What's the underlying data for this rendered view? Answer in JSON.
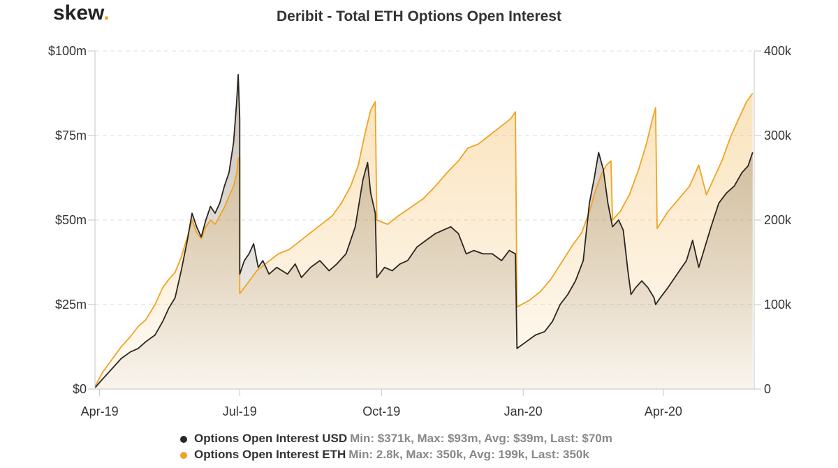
{
  "logo": {
    "text": "skew",
    "dot": "."
  },
  "colors": {
    "usd": "#2b2622",
    "eth": "#f0a323",
    "grid": "#dddddd",
    "axis": "#c6c6c6"
  },
  "chart_data": {
    "type": "area",
    "title": "Deribit - Total ETH Options Open Interest",
    "x_ticks": [
      "Apr-19",
      "Jul-19",
      "Oct-19",
      "Jan-20",
      "Apr-20"
    ],
    "x_range": [
      "2019-03-29",
      "2020-05-30"
    ],
    "y_left": {
      "ticks": [
        "$0",
        "$25m",
        "$50m",
        "$75m",
        "$100m"
      ],
      "range": [
        0,
        100
      ],
      "unit": "USD millions"
    },
    "y_right": {
      "ticks": [
        "0",
        "100k",
        "200k",
        "300k",
        "400k"
      ],
      "range": [
        0,
        400
      ],
      "unit": "ETH thousands"
    },
    "grid": true,
    "legend_position": "bottom",
    "series": [
      {
        "name": "Options Open Interest USD",
        "stats": "Min: $371k, Max: $93m, Avg: $39m, Last: $70m",
        "axis": "left",
        "points": [
          [
            "2019-03-29",
            0.4
          ],
          [
            "2019-04-03",
            3
          ],
          [
            "2019-04-09",
            6
          ],
          [
            "2019-04-15",
            9
          ],
          [
            "2019-04-21",
            11
          ],
          [
            "2019-04-26",
            12
          ],
          [
            "2019-05-01",
            14
          ],
          [
            "2019-05-07",
            16
          ],
          [
            "2019-05-12",
            20
          ],
          [
            "2019-05-16",
            24
          ],
          [
            "2019-05-20",
            27
          ],
          [
            "2019-05-24",
            35
          ],
          [
            "2019-05-28",
            44
          ],
          [
            "2019-05-31",
            52
          ],
          [
            "2019-06-03",
            48
          ],
          [
            "2019-06-06",
            45
          ],
          [
            "2019-06-09",
            50
          ],
          [
            "2019-06-12",
            54
          ],
          [
            "2019-06-15",
            52
          ],
          [
            "2019-06-18",
            55
          ],
          [
            "2019-06-21",
            60
          ],
          [
            "2019-06-24",
            64
          ],
          [
            "2019-06-27",
            73
          ],
          [
            "2019-06-29",
            85
          ],
          [
            "2019-06-30",
            93
          ],
          [
            "2019-07-01",
            80
          ],
          [
            "2019-07-01",
            34
          ],
          [
            "2019-07-04",
            38
          ],
          [
            "2019-07-07",
            40
          ],
          [
            "2019-07-10",
            43
          ],
          [
            "2019-07-13",
            36
          ],
          [
            "2019-07-16",
            38
          ],
          [
            "2019-07-20",
            34
          ],
          [
            "2019-07-25",
            36
          ],
          [
            "2019-08-01",
            34
          ],
          [
            "2019-08-06",
            37
          ],
          [
            "2019-08-10",
            33
          ],
          [
            "2019-08-16",
            36
          ],
          [
            "2019-08-22",
            38
          ],
          [
            "2019-08-28",
            35
          ],
          [
            "2019-09-02",
            37
          ],
          [
            "2019-09-08",
            40
          ],
          [
            "2019-09-14",
            48
          ],
          [
            "2019-09-19",
            62
          ],
          [
            "2019-09-22",
            67
          ],
          [
            "2019-09-24",
            58
          ],
          [
            "2019-09-27",
            52
          ],
          [
            "2019-09-28",
            33
          ],
          [
            "2019-10-03",
            36
          ],
          [
            "2019-10-08",
            35
          ],
          [
            "2019-10-13",
            37
          ],
          [
            "2019-10-18",
            38
          ],
          [
            "2019-10-24",
            42
          ],
          [
            "2019-10-30",
            44
          ],
          [
            "2019-11-05",
            46
          ],
          [
            "2019-11-10",
            47
          ],
          [
            "2019-11-15",
            48
          ],
          [
            "2019-11-20",
            46
          ],
          [
            "2019-11-25",
            40
          ],
          [
            "2019-11-30",
            41
          ],
          [
            "2019-12-06",
            40
          ],
          [
            "2019-12-12",
            40
          ],
          [
            "2019-12-18",
            38
          ],
          [
            "2019-12-23",
            41
          ],
          [
            "2019-12-27",
            40
          ],
          [
            "2019-12-28",
            12
          ],
          [
            "2020-01-03",
            14
          ],
          [
            "2020-01-09",
            16
          ],
          [
            "2020-01-15",
            17
          ],
          [
            "2020-01-20",
            20
          ],
          [
            "2020-01-25",
            25
          ],
          [
            "2020-01-30",
            28
          ],
          [
            "2020-02-04",
            32
          ],
          [
            "2020-02-09",
            38
          ],
          [
            "2020-02-13",
            55
          ],
          [
            "2020-02-16",
            62
          ],
          [
            "2020-02-19",
            70
          ],
          [
            "2020-02-22",
            65
          ],
          [
            "2020-02-25",
            55
          ],
          [
            "2020-02-28",
            48
          ],
          [
            "2020-03-03",
            50
          ],
          [
            "2020-03-06",
            47
          ],
          [
            "2020-03-09",
            35
          ],
          [
            "2020-03-11",
            28
          ],
          [
            "2020-03-14",
            30
          ],
          [
            "2020-03-18",
            32
          ],
          [
            "2020-03-22",
            30
          ],
          [
            "2020-03-26",
            27
          ],
          [
            "2020-03-27",
            25
          ],
          [
            "2020-03-30",
            27
          ],
          [
            "2020-04-04",
            30
          ],
          [
            "2020-04-10",
            34
          ],
          [
            "2020-04-16",
            38
          ],
          [
            "2020-04-20",
            44
          ],
          [
            "2020-04-24",
            36
          ],
          [
            "2020-04-28",
            42
          ],
          [
            "2020-05-02",
            48
          ],
          [
            "2020-05-07",
            55
          ],
          [
            "2020-05-12",
            58
          ],
          [
            "2020-05-17",
            60
          ],
          [
            "2020-05-22",
            64
          ],
          [
            "2020-05-26",
            66
          ],
          [
            "2020-05-29",
            70
          ]
        ]
      },
      {
        "name": "Options Open Interest ETH",
        "stats": "Min: 2.8k, Max: 350k, Avg: 199k, Last: 350k",
        "axis": "right",
        "points": [
          [
            "2019-03-29",
            2.8
          ],
          [
            "2019-04-03",
            20
          ],
          [
            "2019-04-09",
            35
          ],
          [
            "2019-04-15",
            50
          ],
          [
            "2019-04-21",
            62
          ],
          [
            "2019-04-26",
            74
          ],
          [
            "2019-05-01",
            82
          ],
          [
            "2019-05-07",
            100
          ],
          [
            "2019-05-12",
            120
          ],
          [
            "2019-05-16",
            130
          ],
          [
            "2019-05-20",
            138
          ],
          [
            "2019-05-24",
            156
          ],
          [
            "2019-05-28",
            180
          ],
          [
            "2019-05-31",
            200
          ],
          [
            "2019-06-03",
            185
          ],
          [
            "2019-06-06",
            178
          ],
          [
            "2019-06-09",
            192
          ],
          [
            "2019-06-12",
            200
          ],
          [
            "2019-06-15",
            195
          ],
          [
            "2019-06-18",
            205
          ],
          [
            "2019-06-21",
            215
          ],
          [
            "2019-06-24",
            228
          ],
          [
            "2019-06-27",
            240
          ],
          [
            "2019-06-29",
            255
          ],
          [
            "2019-06-30",
            272
          ],
          [
            "2019-07-01",
            275
          ],
          [
            "2019-07-01",
            113
          ],
          [
            "2019-07-06",
            125
          ],
          [
            "2019-07-12",
            140
          ],
          [
            "2019-07-19",
            150
          ],
          [
            "2019-07-26",
            160
          ],
          [
            "2019-08-02",
            165
          ],
          [
            "2019-08-09",
            175
          ],
          [
            "2019-08-16",
            185
          ],
          [
            "2019-08-23",
            195
          ],
          [
            "2019-08-30",
            205
          ],
          [
            "2019-09-05",
            220
          ],
          [
            "2019-09-11",
            240
          ],
          [
            "2019-09-16",
            265
          ],
          [
            "2019-09-20",
            300
          ],
          [
            "2019-09-24",
            330
          ],
          [
            "2019-09-27",
            340
          ],
          [
            "2019-09-28",
            200
          ],
          [
            "2019-10-05",
            195
          ],
          [
            "2019-10-12",
            205
          ],
          [
            "2019-10-20",
            215
          ],
          [
            "2019-10-28",
            225
          ],
          [
            "2019-11-05",
            240
          ],
          [
            "2019-11-12",
            255
          ],
          [
            "2019-11-20",
            270
          ],
          [
            "2019-11-26",
            285
          ],
          [
            "2019-12-03",
            290
          ],
          [
            "2019-12-10",
            300
          ],
          [
            "2019-12-17",
            310
          ],
          [
            "2019-12-24",
            320
          ],
          [
            "2019-12-27",
            328
          ],
          [
            "2019-12-28",
            97
          ],
          [
            "2020-01-05",
            105
          ],
          [
            "2020-01-12",
            115
          ],
          [
            "2020-01-19",
            130
          ],
          [
            "2020-01-26",
            150
          ],
          [
            "2020-02-02",
            170
          ],
          [
            "2020-02-08",
            185
          ],
          [
            "2020-02-13",
            210
          ],
          [
            "2020-02-17",
            235
          ],
          [
            "2020-02-21",
            255
          ],
          [
            "2020-02-24",
            265
          ],
          [
            "2020-02-27",
            270
          ],
          [
            "2020-02-28",
            200
          ],
          [
            "2020-03-04",
            210
          ],
          [
            "2020-03-10",
            230
          ],
          [
            "2020-03-16",
            260
          ],
          [
            "2020-03-21",
            290
          ],
          [
            "2020-03-25",
            320
          ],
          [
            "2020-03-27",
            333
          ],
          [
            "2020-03-28",
            190
          ],
          [
            "2020-04-04",
            210
          ],
          [
            "2020-04-11",
            225
          ],
          [
            "2020-04-18",
            240
          ],
          [
            "2020-04-24",
            265
          ],
          [
            "2020-04-29",
            230
          ],
          [
            "2020-05-04",
            250
          ],
          [
            "2020-05-09",
            270
          ],
          [
            "2020-05-15",
            300
          ],
          [
            "2020-05-20",
            320
          ],
          [
            "2020-05-25",
            340
          ],
          [
            "2020-05-29",
            350
          ]
        ]
      }
    ]
  }
}
